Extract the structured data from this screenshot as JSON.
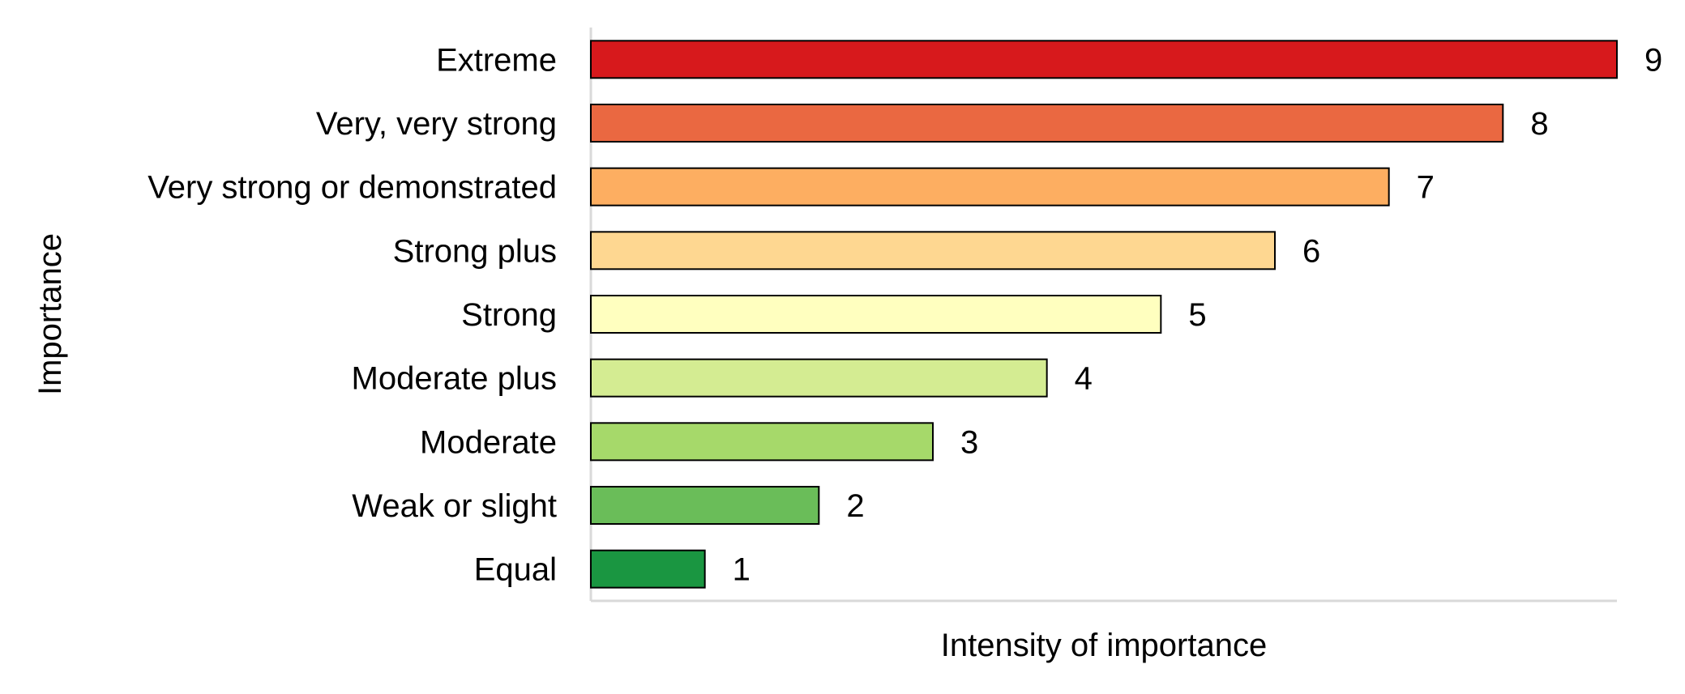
{
  "chart_data": {
    "type": "bar",
    "orientation": "horizontal",
    "title": "",
    "xlabel": "Intensity of importance",
    "ylabel": "Importance",
    "categories": [
      "Equal",
      "Weak or slight",
      "Moderate",
      "Moderate plus",
      "Strong",
      "Strong plus",
      "Very strong or demonstrated",
      "Very, very strong",
      "Extreme"
    ],
    "values": [
      1,
      2,
      3,
      4,
      5,
      6,
      7,
      8,
      9
    ],
    "colors": [
      "#1a9641",
      "#6abd59",
      "#a6d96a",
      "#d4ec92",
      "#ffffbf",
      "#fed791",
      "#fdae61",
      "#ea6841",
      "#d7191c"
    ],
    "xlim": [
      0,
      9
    ],
    "grid": false,
    "legend": "none",
    "data_labels": true
  }
}
